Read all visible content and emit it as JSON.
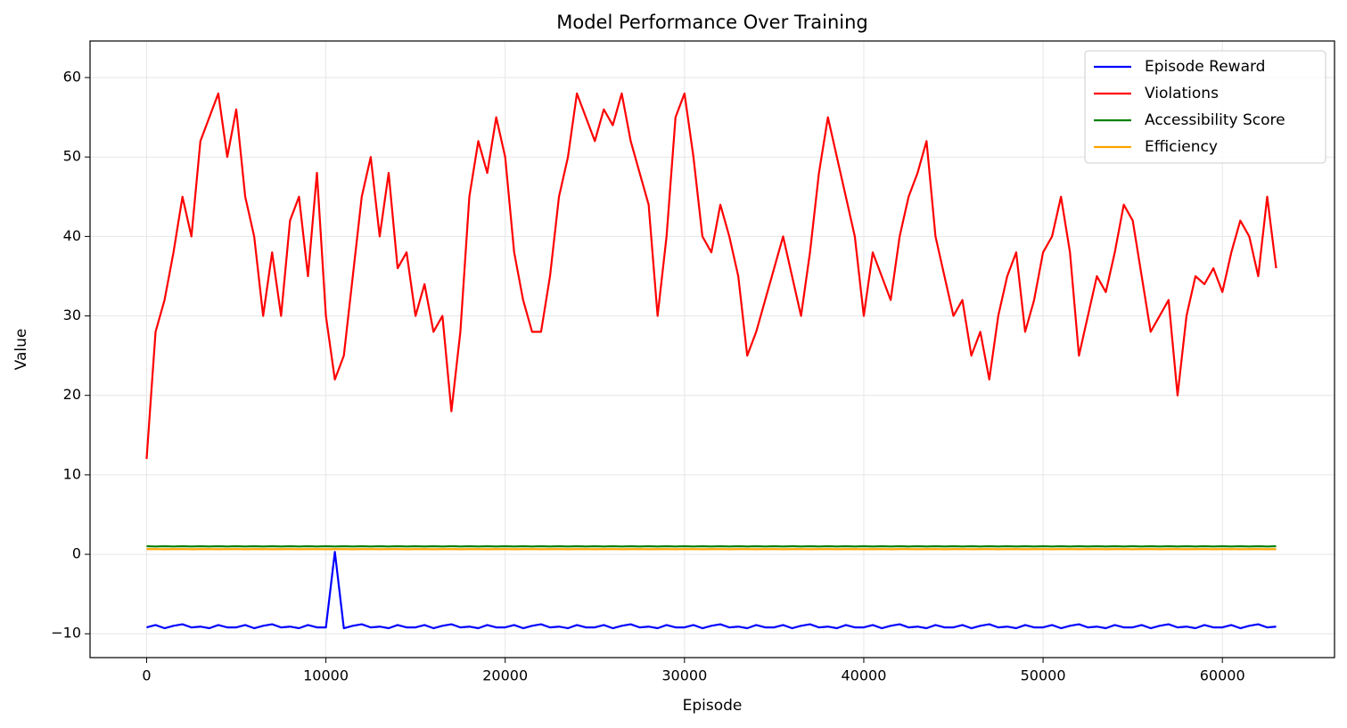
{
  "chart_data": {
    "type": "line",
    "title": "Model Performance Over Training",
    "xlabel": "Episode",
    "ylabel": "Value",
    "x": [
      0,
      500,
      1000,
      1500,
      2000,
      2500,
      3000,
      3500,
      4000,
      4500,
      5000,
      5500,
      6000,
      6500,
      7000,
      7500,
      8000,
      8500,
      9000,
      9500,
      10000,
      10500,
      11000,
      11500,
      12000,
      12500,
      13000,
      13500,
      14000,
      14500,
      15000,
      15500,
      16000,
      16500,
      17000,
      17500,
      18000,
      18500,
      19000,
      19500,
      20000,
      20500,
      21000,
      21500,
      22000,
      22500,
      23000,
      23500,
      24000,
      24500,
      25000,
      25500,
      26000,
      26500,
      27000,
      27500,
      28000,
      28500,
      29000,
      29500,
      30000,
      30500,
      31000,
      31500,
      32000,
      32500,
      33000,
      33500,
      34000,
      34500,
      35000,
      35500,
      36000,
      36500,
      37000,
      37500,
      38000,
      38500,
      39000,
      39500,
      40000,
      40500,
      41000,
      41500,
      42000,
      42500,
      43000,
      43500,
      44000,
      44500,
      45000,
      45500,
      46000,
      46500,
      47000,
      47500,
      48000,
      48500,
      49000,
      49500,
      50000,
      50500,
      51000,
      51500,
      52000,
      52500,
      53000,
      53500,
      54000,
      54500,
      55000,
      55500,
      56000,
      56500,
      57000,
      57500,
      58000,
      58500,
      59000,
      59500,
      60000,
      60500,
      61000,
      61500,
      62000,
      62500,
      63000
    ],
    "series": [
      {
        "name": "Episode Reward",
        "color": "#0000ff",
        "values": [
          -9.2,
          -8.9,
          -9.3,
          -9.0,
          -8.8,
          -9.2,
          -9.1,
          -9.3,
          -8.9,
          -9.2,
          -9.2,
          -8.9,
          -9.3,
          -9.0,
          -8.8,
          -9.2,
          -9.1,
          -9.3,
          -8.9,
          -9.2,
          -9.2,
          0.3,
          -9.3,
          -9.0,
          -8.8,
          -9.2,
          -9.1,
          -9.3,
          -8.9,
          -9.2,
          -9.2,
          -8.9,
          -9.3,
          -9.0,
          -8.8,
          -9.2,
          -9.1,
          -9.3,
          -8.9,
          -9.2,
          -9.2,
          -8.9,
          -9.3,
          -9.0,
          -8.8,
          -9.2,
          -9.1,
          -9.3,
          -8.9,
          -9.2,
          -9.2,
          -8.9,
          -9.3,
          -9.0,
          -8.8,
          -9.2,
          -9.1,
          -9.3,
          -8.9,
          -9.2,
          -9.2,
          -8.9,
          -9.3,
          -9.0,
          -8.8,
          -9.2,
          -9.1,
          -9.3,
          -8.9,
          -9.2,
          -9.2,
          -8.9,
          -9.3,
          -9.0,
          -8.8,
          -9.2,
          -9.1,
          -9.3,
          -8.9,
          -9.2,
          -9.2,
          -8.9,
          -9.3,
          -9.0,
          -8.8,
          -9.2,
          -9.1,
          -9.3,
          -8.9,
          -9.2,
          -9.2,
          -8.9,
          -9.3,
          -9.0,
          -8.8,
          -9.2,
          -9.1,
          -9.3,
          -8.9,
          -9.2,
          -9.2,
          -8.9,
          -9.3,
          -9.0,
          -8.8,
          -9.2,
          -9.1,
          -9.3,
          -8.9,
          -9.2,
          -9.2,
          -8.9,
          -9.3,
          -9.0,
          -8.8,
          -9.2,
          -9.1,
          -9.3,
          -8.9,
          -9.2,
          -9.2,
          -8.9,
          -9.3,
          -9.0,
          -8.8,
          -9.2,
          -9.1
        ]
      },
      {
        "name": "Violations",
        "color": "#ff0000",
        "values": [
          12,
          28,
          32,
          38,
          45,
          40,
          52,
          55,
          58,
          50,
          56,
          45,
          40,
          30,
          38,
          30,
          42,
          45,
          35,
          48,
          30,
          22,
          25,
          35,
          45,
          50,
          40,
          48,
          36,
          38,
          30,
          34,
          28,
          30,
          18,
          28,
          45,
          52,
          48,
          55,
          50,
          38,
          32,
          28,
          28,
          35,
          45,
          50,
          58,
          55,
          52,
          56,
          54,
          58,
          52,
          48,
          44,
          30,
          40,
          55,
          58,
          50,
          40,
          38,
          44,
          40,
          35,
          25,
          28,
          32,
          36,
          40,
          35,
          30,
          38,
          48,
          55,
          50,
          45,
          40,
          30,
          38,
          35,
          32,
          40,
          45,
          48,
          52,
          40,
          35,
          30,
          32,
          25,
          28,
          22,
          30,
          35,
          38,
          28,
          32,
          38,
          40,
          45,
          38,
          25,
          30,
          35,
          33,
          38,
          44,
          42,
          35,
          28,
          30,
          32,
          20,
          30,
          35,
          34,
          36,
          33,
          38,
          42,
          40,
          35,
          45,
          36
        ]
      },
      {
        "name": "Accessibility Score",
        "color": "#008000",
        "values": [
          1.02,
          0.98,
          1.02,
          0.98,
          1.02,
          0.98,
          1.02,
          0.98,
          1.02,
          0.98,
          1.02,
          0.98,
          1.02,
          0.98,
          1.02,
          0.98,
          1.02,
          0.98,
          1.02,
          0.98,
          1.02,
          0.98,
          1.02,
          0.98,
          1.02,
          0.98,
          1.02,
          0.98,
          1.02,
          0.98,
          1.02,
          0.98,
          1.02,
          0.98,
          1.02,
          0.98,
          1.02,
          0.98,
          1.02,
          0.98,
          1.02,
          0.98,
          1.02,
          0.98,
          1.02,
          0.98,
          1.02,
          0.98,
          1.02,
          0.98,
          1.02,
          0.98,
          1.02,
          0.98,
          1.02,
          0.98,
          1.02,
          0.98,
          1.02,
          0.98,
          1.02,
          0.98,
          1.02,
          0.98,
          1.02,
          0.98,
          1.02,
          0.98,
          1.02,
          0.98,
          1.02,
          0.98,
          1.02,
          0.98,
          1.02,
          0.98,
          1.02,
          0.98,
          1.02,
          0.98,
          1.02,
          0.98,
          1.02,
          0.98,
          1.02,
          0.98,
          1.02,
          0.98,
          1.02,
          0.98,
          1.02,
          0.98,
          1.02,
          0.98,
          1.02,
          0.98,
          1.02,
          0.98,
          1.02,
          0.98,
          1.02,
          0.98,
          1.02,
          0.98,
          1.02,
          0.98,
          1.02,
          0.98,
          1.02,
          0.98,
          1.02,
          0.98,
          1.02,
          0.98,
          1.02,
          0.98,
          1.02,
          0.98,
          1.02,
          0.98,
          1.02,
          0.98,
          1.02,
          0.98,
          1.02,
          0.98,
          1.02
        ]
      },
      {
        "name": "Efficiency",
        "color": "#ffa500",
        "values": [
          0.65,
          0.66,
          0.64,
          0.65,
          0.66,
          0.64,
          0.65,
          0.66,
          0.64,
          0.65,
          0.66,
          0.64,
          0.65,
          0.66,
          0.64,
          0.65,
          0.66,
          0.64,
          0.65,
          0.66,
          0.64,
          0.65,
          0.66,
          0.64,
          0.65,
          0.66,
          0.64,
          0.65,
          0.66,
          0.64,
          0.65,
          0.66,
          0.64,
          0.65,
          0.66,
          0.64,
          0.65,
          0.66,
          0.64,
          0.65,
          0.66,
          0.64,
          0.65,
          0.66,
          0.64,
          0.65,
          0.66,
          0.64,
          0.65,
          0.66,
          0.64,
          0.65,
          0.66,
          0.64,
          0.65,
          0.66,
          0.64,
          0.65,
          0.66,
          0.64,
          0.65,
          0.66,
          0.64,
          0.65,
          0.66,
          0.64,
          0.65,
          0.66,
          0.64,
          0.65,
          0.66,
          0.64,
          0.65,
          0.66,
          0.64,
          0.65,
          0.66,
          0.64,
          0.65,
          0.66,
          0.64,
          0.65,
          0.66,
          0.64,
          0.65,
          0.66,
          0.64,
          0.65,
          0.66,
          0.64,
          0.65,
          0.66,
          0.64,
          0.65,
          0.66,
          0.64,
          0.65,
          0.66,
          0.64,
          0.65,
          0.66,
          0.64,
          0.65,
          0.66,
          0.64,
          0.65,
          0.66,
          0.64,
          0.65,
          0.66,
          0.64,
          0.65,
          0.66,
          0.64,
          0.65,
          0.66,
          0.64,
          0.65,
          0.66,
          0.64,
          0.65,
          0.66,
          0.64,
          0.65,
          0.66,
          0.64,
          0.65
        ]
      }
    ],
    "xlim": [
      -3155,
      66255
    ],
    "ylim": [
      -13,
      64.6
    ],
    "xticks": [
      0,
      10000,
      20000,
      30000,
      40000,
      50000,
      60000
    ],
    "yticks": [
      {
        "value": -10,
        "label": "−10"
      },
      0,
      10,
      20,
      30,
      40,
      50,
      60
    ],
    "grid": true,
    "legend": "upper right"
  }
}
